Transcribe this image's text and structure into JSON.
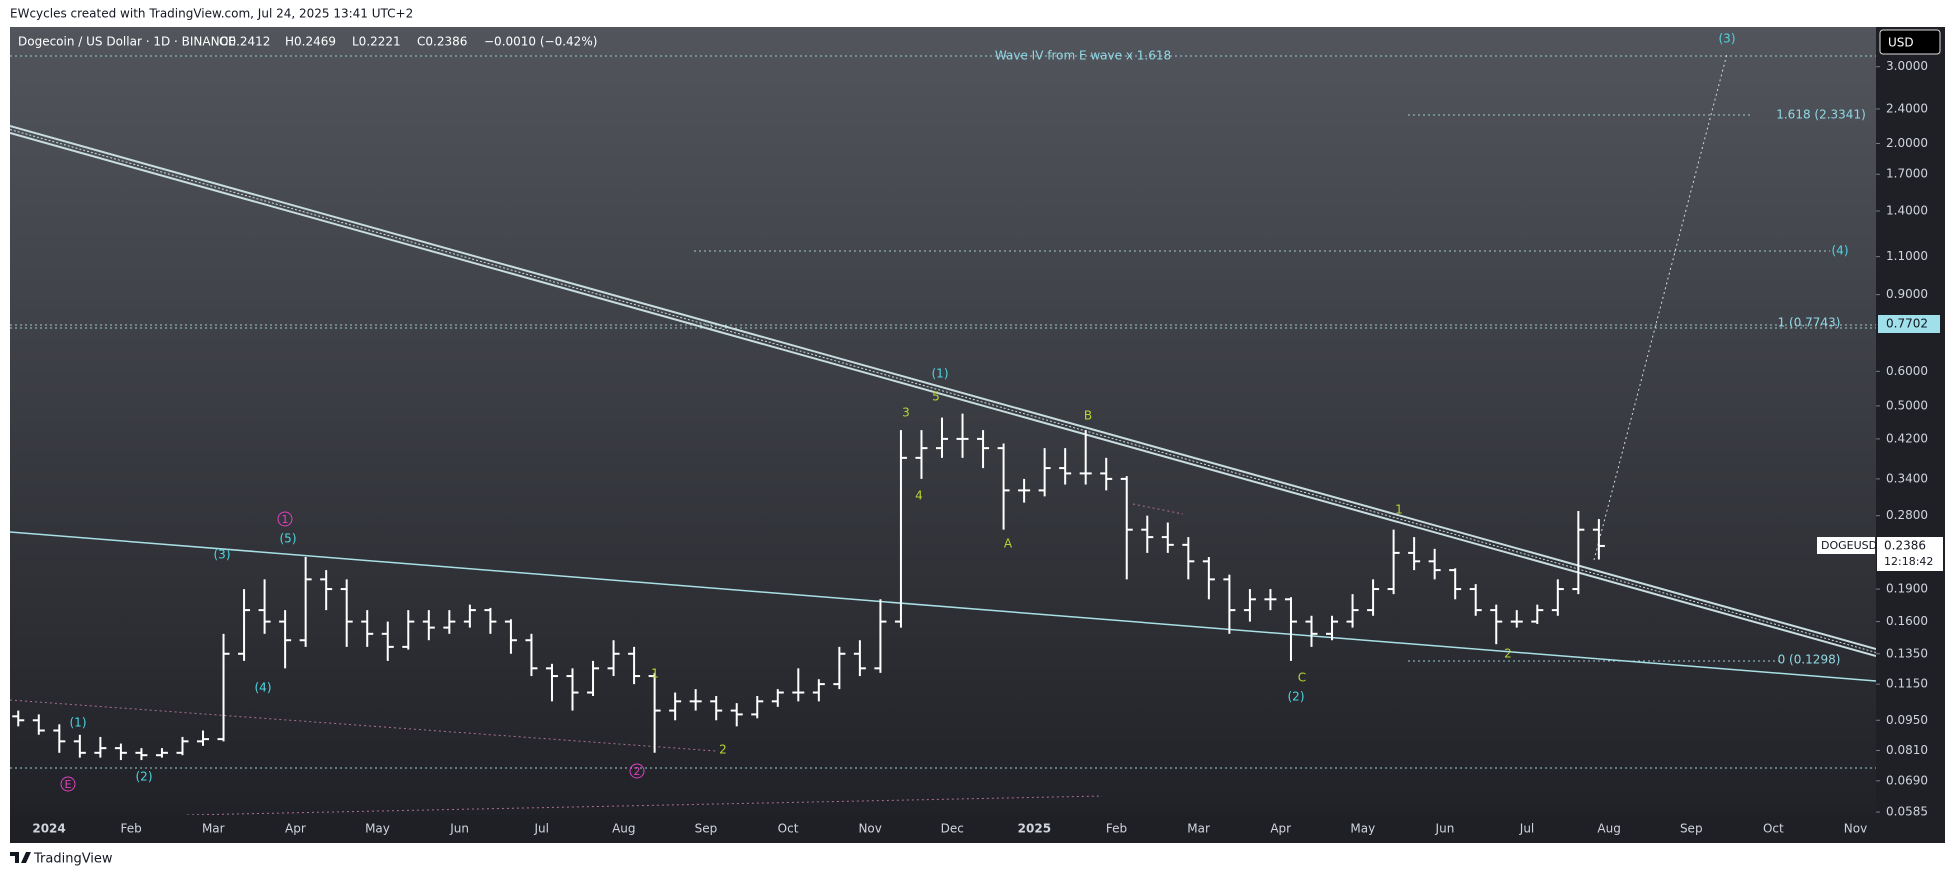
{
  "header": {
    "credit": "EWcycles created with TradingView.com, Jul 24, 2025 13:41 UTC+2",
    "symbol": "Dogecoin / US Dollar · 1D · BINANCE",
    "open": "O0.2412",
    "high": "H0.2469",
    "low": "L0.2221",
    "close": "C0.2386",
    "change": "−0.0010 (−0.42%)"
  },
  "price_axis": {
    "currency": "USD",
    "level_tag": "0.7702",
    "ticker": "DOGEUSD",
    "last_price": "0.2386",
    "countdown": "12:18:42"
  },
  "levels": [
    "Wave IV from E wave  x 1.618",
    "1.618 (2.3341)",
    "1 (0.7743)",
    "0 (0.1298)"
  ],
  "wave_labels": [
    "3",
    "5",
    "4",
    "A",
    "B",
    "C",
    "1",
    "2",
    "1",
    "2",
    "(1)",
    "(3)",
    "(5)",
    "(4)",
    "(1)",
    "(2)",
    "(2)",
    "(3)",
    "(4)",
    "1",
    "2",
    "E"
  ],
  "footer": {
    "brand": "TradingView"
  },
  "chart_data": {
    "type": "ohlc",
    "log_scale": true,
    "color": "#ffffff",
    "categories": [
      null,
      null,
      "2024",
      null,
      null,
      null,
      "Feb",
      null,
      null,
      null,
      "Mar",
      null,
      null,
      null,
      "Apr",
      null,
      null,
      null,
      "May",
      null,
      null,
      null,
      "Jun",
      null,
      null,
      null,
      "Jul",
      null,
      null,
      null,
      "Aug",
      null,
      null,
      null,
      "Sep",
      null,
      null,
      null,
      "Oct",
      null,
      null,
      null,
      "Nov",
      null,
      null,
      null,
      "Dec",
      null,
      null,
      null,
      "2025",
      null,
      null,
      null,
      "Feb",
      null,
      null,
      null,
      "Mar",
      null,
      null,
      null,
      "Apr",
      null,
      null,
      null,
      "May",
      null,
      null,
      null,
      "Jun",
      null,
      null,
      null,
      "Jul",
      null,
      null,
      null,
      "Aug",
      null,
      null,
      null,
      "Sep",
      null,
      null,
      null,
      "Oct",
      null,
      null,
      null,
      "Nov"
    ],
    "open": [
      0.097,
      0.095,
      0.09,
      0.085,
      0.08,
      0.082,
      0.08,
      0.079,
      0.08,
      0.085,
      0.086,
      0.135,
      0.17,
      0.16,
      0.145,
      0.2,
      0.19,
      0.16,
      0.15,
      0.14,
      0.16,
      0.155,
      0.16,
      0.17,
      0.16,
      0.145,
      0.125,
      0.12,
      0.11,
      0.125,
      0.135,
      0.12,
      0.1,
      0.105,
      0.105,
      0.1,
      0.098,
      0.105,
      0.11,
      0.11,
      0.115,
      0.135,
      0.125,
      0.16,
      0.38,
      0.4,
      0.42,
      0.42,
      0.4,
      0.32,
      0.32,
      0.36,
      0.35,
      0.35,
      0.34,
      0.26,
      0.25,
      0.24,
      0.22,
      0.2,
      0.17,
      0.18,
      0.18,
      0.16,
      0.15,
      0.16,
      0.17,
      0.19,
      0.23,
      0.22,
      0.21,
      0.19,
      0.17,
      0.16,
      0.16,
      0.17,
      0.19,
      0.26,
      null,
      null,
      null,
      null,
      null,
      null,
      null,
      null,
      null,
      null,
      null,
      null,
      null
    ],
    "high": [
      0.1,
      0.098,
      0.093,
      0.088,
      0.087,
      0.084,
      0.082,
      0.082,
      0.087,
      0.09,
      0.15,
      0.19,
      0.2,
      0.17,
      0.225,
      0.21,
      0.2,
      0.17,
      0.16,
      0.17,
      0.17,
      0.17,
      0.175,
      0.172,
      0.162,
      0.15,
      0.128,
      0.125,
      0.13,
      0.145,
      0.14,
      0.122,
      0.11,
      0.112,
      0.108,
      0.104,
      0.108,
      0.112,
      0.125,
      0.118,
      0.14,
      0.145,
      0.18,
      0.44,
      0.44,
      0.47,
      0.48,
      0.44,
      0.41,
      0.34,
      0.4,
      0.4,
      0.44,
      0.38,
      0.345,
      0.28,
      0.27,
      0.25,
      0.225,
      0.205,
      0.19,
      0.19,
      0.182,
      0.165,
      0.165,
      0.185,
      0.2,
      0.26,
      0.25,
      0.235,
      0.212,
      0.195,
      0.175,
      0.17,
      0.175,
      0.2,
      0.287,
      0.275,
      null,
      null,
      null,
      null,
      null,
      null,
      null,
      null,
      null,
      null,
      null,
      null,
      null
    ],
    "low": [
      0.092,
      0.088,
      0.08,
      0.078,
      0.078,
      0.077,
      0.077,
      0.078,
      0.079,
      0.083,
      0.085,
      0.13,
      0.15,
      0.125,
      0.14,
      0.17,
      0.14,
      0.14,
      0.13,
      0.138,
      0.145,
      0.15,
      0.155,
      0.15,
      0.135,
      0.12,
      0.105,
      0.1,
      0.108,
      0.12,
      0.115,
      0.08,
      0.095,
      0.1,
      0.095,
      0.092,
      0.096,
      0.102,
      0.105,
      0.105,
      0.112,
      0.12,
      0.122,
      0.155,
      0.34,
      0.38,
      0.38,
      0.36,
      0.26,
      0.3,
      0.31,
      0.33,
      0.33,
      0.32,
      0.2,
      0.23,
      0.23,
      0.2,
      0.18,
      0.15,
      0.16,
      0.17,
      0.13,
      0.14,
      0.145,
      0.155,
      0.165,
      0.185,
      0.21,
      0.2,
      0.18,
      0.165,
      0.142,
      0.155,
      0.158,
      0.165,
      0.185,
      0.2221,
      null,
      null,
      null,
      null,
      null,
      null,
      null,
      null,
      null,
      null,
      null,
      null,
      null
    ],
    "close": [
      0.095,
      0.09,
      0.085,
      0.08,
      0.082,
      0.08,
      0.079,
      0.08,
      0.085,
      0.086,
      0.135,
      0.17,
      0.16,
      0.145,
      0.2,
      0.19,
      0.16,
      0.15,
      0.14,
      0.16,
      0.155,
      0.16,
      0.17,
      0.16,
      0.145,
      0.125,
      0.12,
      0.11,
      0.125,
      0.135,
      0.12,
      0.1,
      0.105,
      0.105,
      0.1,
      0.098,
      0.105,
      0.11,
      0.11,
      0.115,
      0.135,
      0.125,
      0.16,
      0.38,
      0.4,
      0.42,
      0.42,
      0.4,
      0.32,
      0.32,
      0.36,
      0.35,
      0.35,
      0.34,
      0.26,
      0.25,
      0.24,
      0.22,
      0.2,
      0.17,
      0.18,
      0.18,
      0.16,
      0.15,
      0.16,
      0.17,
      0.19,
      0.23,
      0.22,
      0.21,
      0.19,
      0.17,
      0.16,
      0.16,
      0.17,
      0.19,
      0.26,
      0.2386,
      null,
      null,
      null,
      null,
      null,
      null,
      null,
      null,
      null,
      null,
      null,
      null,
      null
    ],
    "ylim": [
      0.0576,
      3.7
    ],
    "yticks": [
      {
        "value": 3,
        "label": "3.0000"
      },
      {
        "value": 2.4,
        "label": "2.4000"
      },
      {
        "value": 2,
        "label": "2.0000"
      },
      {
        "value": 1.7,
        "label": "1.7000"
      },
      {
        "value": 1.4,
        "label": "1.4000"
      },
      {
        "value": 1.1,
        "label": "1.1000"
      },
      {
        "value": 0.9,
        "label": "0.9000"
      },
      {
        "value": 0.6,
        "label": "0.6000"
      },
      {
        "value": 0.5,
        "label": "0.5000"
      },
      {
        "value": 0.42,
        "label": "0.4200"
      },
      {
        "value": 0.34,
        "label": "0.3400"
      },
      {
        "value": 0.28,
        "label": "0.2800"
      },
      {
        "value": 0.19,
        "label": "0.1900"
      },
      {
        "value": 0.16,
        "label": "0.1600"
      },
      {
        "value": 0.135,
        "label": "0.1350"
      },
      {
        "value": 0.115,
        "label": "0.1150"
      },
      {
        "value": 0.095,
        "label": "0.0950"
      },
      {
        "value": 0.081,
        "label": "0.0810"
      },
      {
        "value": 0.069,
        "label": "0.0690"
      },
      {
        "value": 0.0585,
        "label": "0.0585"
      }
    ]
  }
}
